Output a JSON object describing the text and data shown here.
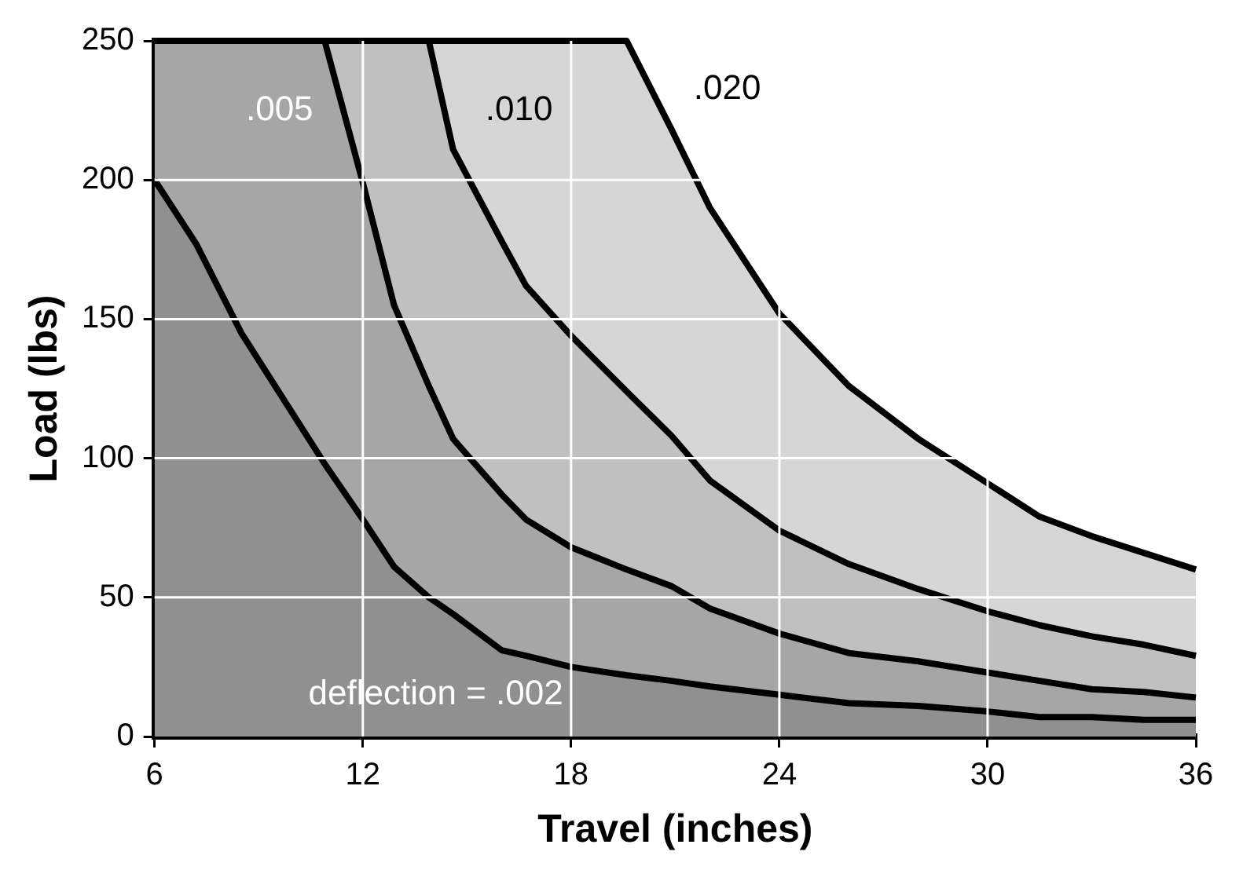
{
  "chart_data": {
    "type": "area",
    "xlabel": "Travel (inches)",
    "ylabel": "Load (lbs)",
    "xlim": [
      6,
      36
    ],
    "xticks": [
      6,
      12,
      18,
      24,
      30,
      36
    ],
    "ylim": [
      0,
      250
    ],
    "yticks": [
      0,
      50,
      100,
      150,
      200,
      250
    ],
    "grid": true,
    "legend": false,
    "x": [
      6,
      7.2,
      8.5,
      10.9,
      12,
      12.9,
      13.9,
      14.6,
      16,
      16.7,
      18,
      19.6,
      20.9,
      22,
      24,
      26,
      28,
      30,
      31.5,
      33,
      34.5,
      36
    ],
    "series": [
      {
        "name": "deflection = .002",
        "color": "#909090",
        "values": [
          200,
          177,
          145,
          98,
          78,
          61,
          50,
          44,
          31,
          29,
          25,
          22,
          20,
          18,
          15,
          12,
          11,
          9,
          7,
          7,
          6,
          6
        ]
      },
      {
        "name": ".005",
        "color": "#a6a6a6",
        "values": [
          250,
          250,
          250,
          250,
          199,
          155,
          126,
          107,
          87,
          78,
          68,
          60,
          54,
          46,
          37,
          30,
          27,
          23,
          20,
          17,
          16,
          14
        ]
      },
      {
        "name": ".010",
        "color": "#c0c0c0",
        "values": [
          250,
          250,
          250,
          250,
          250,
          250,
          250,
          211,
          178,
          162,
          144,
          124,
          108,
          92,
          74,
          62,
          53,
          45,
          40,
          36,
          33,
          29
        ]
      },
      {
        "name": ".020",
        "color": "#d6d6d6",
        "values": [
          250,
          250,
          250,
          250,
          250,
          250,
          250,
          250,
          250,
          250,
          250,
          250,
          218,
          190,
          152,
          126,
          107,
          91,
          79,
          72,
          66,
          60
        ]
      }
    ]
  }
}
